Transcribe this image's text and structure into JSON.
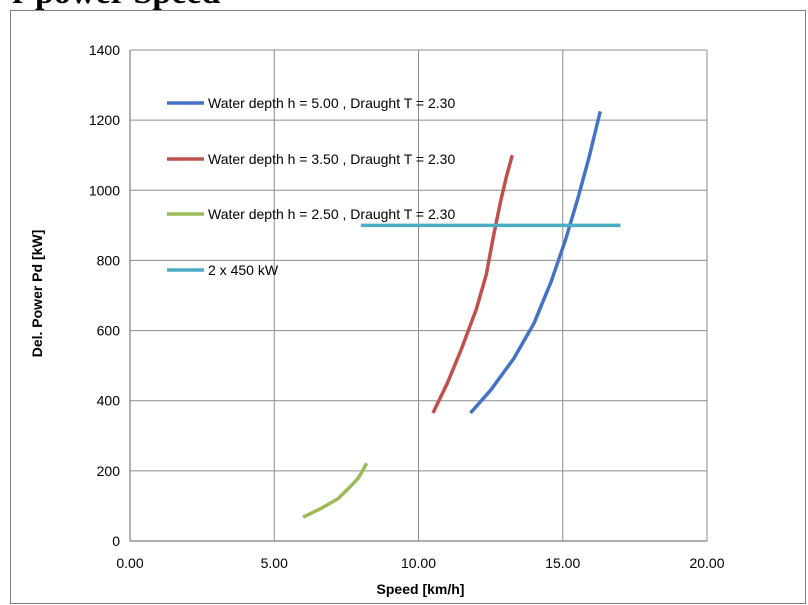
{
  "page_title": "r  power Speed",
  "chart_data": {
    "type": "line",
    "xlabel": "Speed [km/h]",
    "ylabel": "Del. Power Pd [kW]",
    "xlim": [
      0,
      20
    ],
    "ylim": [
      0,
      1400
    ],
    "x_ticks": [
      "0.00",
      "5.00",
      "10.00",
      "15.00",
      "20.00"
    ],
    "y_ticks": [
      "0",
      "200",
      "400",
      "600",
      "800",
      "1000",
      "1200",
      "1400"
    ],
    "grid": true,
    "legend_position": "top-left",
    "series": [
      {
        "name": "Water depth h = 5.00 , Draught T = 2.30",
        "color": "#4472c4",
        "points": [
          [
            11.8,
            365
          ],
          [
            12.5,
            430
          ],
          [
            13.3,
            520
          ],
          [
            14.0,
            620
          ],
          [
            14.6,
            740
          ],
          [
            15.1,
            860
          ],
          [
            15.5,
            970
          ],
          [
            15.9,
            1090
          ],
          [
            16.3,
            1225
          ]
        ]
      },
      {
        "name": "Water depth h = 3.50 , Draught T = 2.30",
        "color": "#c0504d",
        "points": [
          [
            10.5,
            365
          ],
          [
            11.0,
            450
          ],
          [
            11.5,
            550
          ],
          [
            12.0,
            660
          ],
          [
            12.35,
            760
          ],
          [
            12.6,
            870
          ],
          [
            12.85,
            970
          ],
          [
            13.05,
            1040
          ],
          [
            13.25,
            1100
          ]
        ]
      },
      {
        "name": "Water depth h = 2.50 , Draught T = 2.30",
        "color": "#9bbb59",
        "points": [
          [
            6.0,
            68
          ],
          [
            6.6,
            92
          ],
          [
            7.2,
            120
          ],
          [
            7.6,
            152
          ],
          [
            7.9,
            178
          ],
          [
            8.05,
            198
          ],
          [
            8.2,
            222
          ]
        ]
      },
      {
        "name": "2 x 450 kW",
        "color": "#4bacc6",
        "points": [
          [
            8.0,
            900
          ],
          [
            17.0,
            900
          ]
        ]
      }
    ]
  }
}
